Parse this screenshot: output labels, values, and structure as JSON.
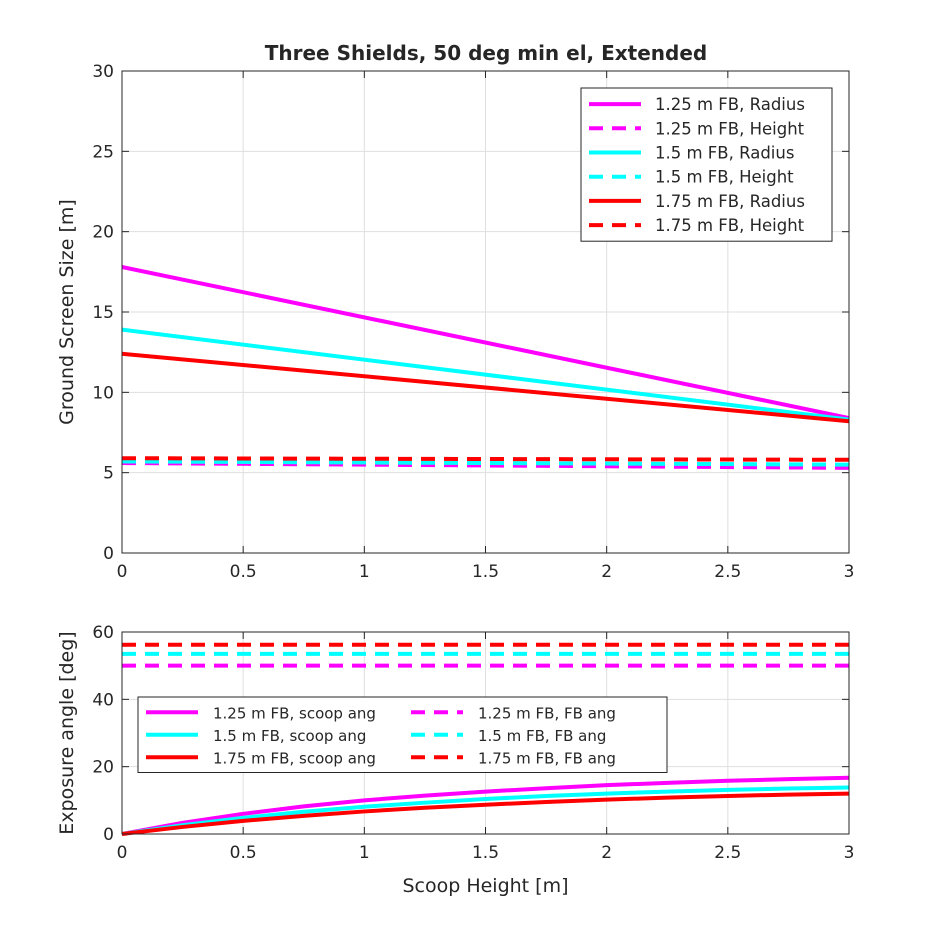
{
  "figure": {
    "title": "Three Shields, 50 deg min el, Extended"
  },
  "chart_data": [
    {
      "type": "line",
      "title": "Three Shields, 50 deg min el, Extended",
      "xlabel": "",
      "ylabel": "Ground Screen Size [m]",
      "xlim": [
        0,
        3
      ],
      "ylim": [
        0,
        30
      ],
      "xticks": [
        "0",
        "0.5",
        "1",
        "1.5",
        "2",
        "2.5",
        "3"
      ],
      "yticks": [
        "0",
        "5",
        "10",
        "15",
        "20",
        "25",
        "30"
      ],
      "grid": true,
      "legend_position": "top-right",
      "series": [
        {
          "name": "1.25 m FB, Radius",
          "color": "#ff00ff",
          "dash": "solid",
          "x": [
            0,
            3
          ],
          "y": [
            17.8,
            8.4
          ]
        },
        {
          "name": "1.25 m FB, Height",
          "color": "#ff00ff",
          "dash": "dashed",
          "x": [
            0,
            3
          ],
          "y": [
            5.6,
            5.3
          ]
        },
        {
          "name": "1.5 m FB, Radius",
          "color": "#00ffff",
          "dash": "solid",
          "x": [
            0,
            3
          ],
          "y": [
            13.9,
            8.3
          ]
        },
        {
          "name": "1.5 m FB, Height",
          "color": "#00ffff",
          "dash": "dashed",
          "x": [
            0,
            3
          ],
          "y": [
            5.7,
            5.5
          ]
        },
        {
          "name": "1.75 m FB, Radius",
          "color": "#ff0000",
          "dash": "solid",
          "x": [
            0,
            3
          ],
          "y": [
            12.4,
            8.2
          ]
        },
        {
          "name": "1.75 m FB, Height",
          "color": "#ff0000",
          "dash": "dashed",
          "x": [
            0,
            3
          ],
          "y": [
            5.9,
            5.8
          ]
        }
      ]
    },
    {
      "type": "line",
      "title": "",
      "xlabel": "Scoop Height [m]",
      "ylabel": "Exposure angle [deg]",
      "xlim": [
        0,
        3
      ],
      "ylim": [
        0,
        60
      ],
      "xticks": [
        "0",
        "0.5",
        "1",
        "1.5",
        "2",
        "2.5",
        "3"
      ],
      "yticks": [
        "0",
        "20",
        "40",
        "60"
      ],
      "grid": true,
      "legend_position": "left, two columns",
      "series": [
        {
          "name": "1.25 m FB, scoop ang",
          "color": "#ff00ff",
          "dash": "solid",
          "x": [
            0,
            0.25,
            0.5,
            0.75,
            1,
            1.25,
            1.5,
            1.75,
            2,
            2.25,
            2.5,
            2.75,
            3
          ],
          "y": [
            0,
            3.3,
            6.0,
            8.2,
            10.0,
            11.4,
            12.6,
            13.6,
            14.5,
            15.2,
            15.8,
            16.3,
            16.7
          ]
        },
        {
          "name": "1.25 m FB, FB ang",
          "color": "#ff00ff",
          "dash": "dashed",
          "x": [
            0,
            3
          ],
          "y": [
            50,
            50
          ]
        },
        {
          "name": "1.5 m FB, scoop ang",
          "color": "#00ffff",
          "dash": "solid",
          "x": [
            0,
            0.25,
            0.5,
            0.75,
            1,
            1.25,
            1.5,
            1.75,
            2,
            2.25,
            2.5,
            2.75,
            3
          ],
          "y": [
            0,
            2.6,
            4.8,
            6.6,
            8.1,
            9.3,
            10.4,
            11.3,
            12.0,
            12.6,
            13.1,
            13.5,
            13.8
          ]
        },
        {
          "name": "1.5 m FB, FB ang",
          "color": "#00ffff",
          "dash": "dashed",
          "x": [
            0,
            3
          ],
          "y": [
            53.5,
            53.5
          ]
        },
        {
          "name": "1.75 m FB, scoop ang",
          "color": "#ff0000",
          "dash": "solid",
          "x": [
            0,
            0.25,
            0.5,
            0.75,
            1,
            1.25,
            1.5,
            1.75,
            2,
            2.25,
            2.5,
            2.75,
            3
          ],
          "y": [
            0,
            2.1,
            3.9,
            5.4,
            6.7,
            7.8,
            8.7,
            9.5,
            10.2,
            10.8,
            11.3,
            11.7,
            12.0
          ]
        },
        {
          "name": "1.75 m FB, FB ang",
          "color": "#ff0000",
          "dash": "dashed",
          "x": [
            0,
            3
          ],
          "y": [
            56.2,
            56.2
          ]
        }
      ]
    }
  ]
}
